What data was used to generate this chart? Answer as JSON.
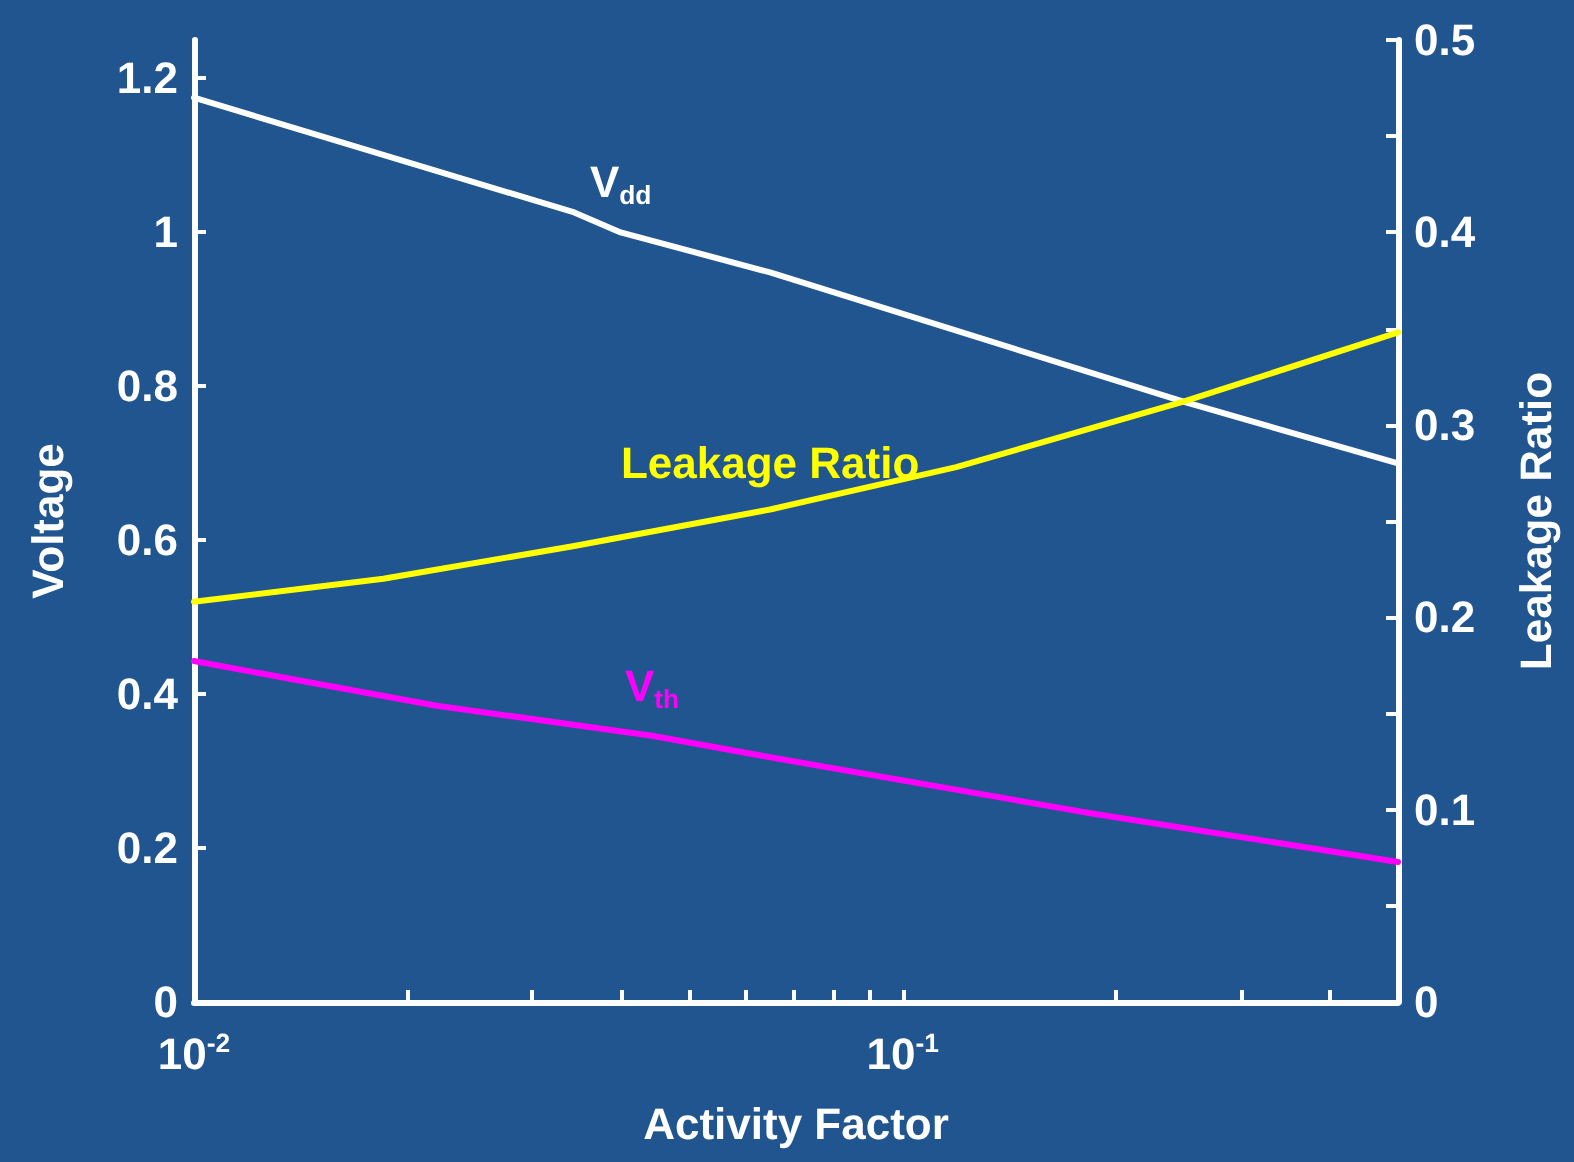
{
  "chart_data": {
    "type": "line",
    "xlabel": "Activity Factor",
    "ylabel": "Voltage",
    "y2label": "Leakage Ratio",
    "log": "x",
    "grid": false,
    "marker": "none",
    "line_style": "solid",
    "xlim": [
      0.01,
      0.5
    ],
    "xticks": [
      {
        "value": 0.01,
        "label": "10$^{-2}$"
      },
      {
        "value": 0.02,
        "label": null
      },
      {
        "value": 0.03,
        "label": null
      },
      {
        "value": 0.04,
        "label": null
      },
      {
        "value": 0.05,
        "label": null
      },
      {
        "value": 0.06,
        "label": null
      },
      {
        "value": 0.07,
        "label": null
      },
      {
        "value": 0.08,
        "label": null
      },
      {
        "value": 0.09,
        "label": null
      },
      {
        "value": 0.1,
        "label": "10$^{-1}$"
      },
      {
        "value": 0.2,
        "label": null
      },
      {
        "value": 0.3,
        "label": null
      },
      {
        "value": 0.4,
        "label": null
      }
    ],
    "ylim": [
      0,
      1.25
    ],
    "yticks": [
      0,
      0.2,
      0.4,
      0.6,
      0.8,
      1,
      1.2
    ],
    "y2lim": [
      0,
      0.5
    ],
    "y2ticks": [
      0,
      {
        "value": 0.05,
        "label": null
      },
      0.1,
      {
        "value": 0.15,
        "label": null
      },
      0.2,
      {
        "value": 0.25,
        "label": null
      },
      0.3,
      {
        "value": 0.35,
        "label": null
      },
      0.4,
      {
        "value": 0.45,
        "label": null
      },
      0.5
    ],
    "series": [
      {
        "name": "V$_{dd}$",
        "color": "#ffffff",
        "x": [
          0.01,
          0.0344,
          0.04,
          0.065,
          0.249,
          0.5
        ],
        "values": [
          1.175,
          1.026,
          1.0,
          0.948,
          0.78,
          0.7
        ]
      },
      {
        "name": "Leakage Ratio",
        "color": "#ffff00",
        "axis": "y2",
        "x": [
          0.01,
          0.0185,
          0.0344,
          0.065,
          0.119,
          0.249,
          0.5
        ],
        "values": [
          0.208,
          0.22,
          0.237,
          0.256,
          0.278,
          0.312,
          0.348
        ]
      },
      {
        "name": "V$_{th}$",
        "color": "#ff00ff",
        "x": [
          0.01,
          0.022,
          0.0443,
          0.065,
          0.185,
          0.5
        ],
        "values": [
          0.443,
          0.385,
          0.346,
          0.318,
          0.245,
          0.182
        ]
      }
    ]
  }
}
